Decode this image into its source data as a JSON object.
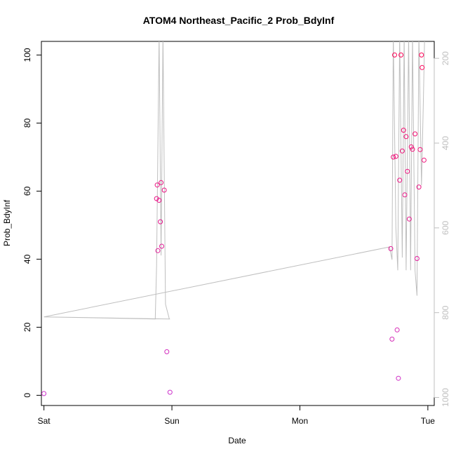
{
  "chart_data": {
    "type": "scatter",
    "title": "ATOM4 Northeast_Pacific_2 Prob_BdyInf",
    "xlabel": "Date",
    "ylabel": "Prob_BdyInf",
    "x_tick_labels": [
      "Sat",
      "Sun",
      "Mon",
      "Tue"
    ],
    "xlim_days": [
      -0.02,
      3.05
    ],
    "ylim": [
      -3,
      104
    ],
    "y_ticks": [
      0,
      20,
      40,
      60,
      80,
      100
    ],
    "y2_ticks": [
      200,
      400,
      600,
      800,
      1000
    ],
    "y2lim": [
      1019,
      160
    ],
    "grid": false,
    "legend": "none",
    "colors": {
      "point_low": "#cc33cc",
      "point_high": "#ff0055",
      "trace": "#bfbfbf",
      "y2_axis": "#bfbfbf"
    },
    "series": [
      {
        "values": [
          {
            "x": 0.0,
            "y": 0.5
          },
          {
            "x": 0.88,
            "y": 57.8
          },
          {
            "x": 0.885,
            "y": 61.8
          },
          {
            "x": 0.89,
            "y": 42.5
          },
          {
            "x": 0.9,
            "y": 57.3
          },
          {
            "x": 0.91,
            "y": 51.0
          },
          {
            "x": 0.915,
            "y": 62.5
          },
          {
            "x": 0.92,
            "y": 43.8
          },
          {
            "x": 0.94,
            "y": 60.3
          },
          {
            "x": 0.96,
            "y": 12.8
          },
          {
            "x": 0.985,
            "y": 0.9
          },
          {
            "x": 2.71,
            "y": 43.1
          },
          {
            "x": 2.72,
            "y": 16.5
          },
          {
            "x": 2.73,
            "y": 70.0
          },
          {
            "x": 2.74,
            "y": 100.0
          },
          {
            "x": 2.75,
            "y": 70.2
          },
          {
            "x": 2.76,
            "y": 19.2
          },
          {
            "x": 2.77,
            "y": 5.0
          },
          {
            "x": 2.78,
            "y": 63.2
          },
          {
            "x": 2.79,
            "y": 100.0
          },
          {
            "x": 2.8,
            "y": 71.8
          },
          {
            "x": 2.81,
            "y": 77.9
          },
          {
            "x": 2.82,
            "y": 58.9
          },
          {
            "x": 2.83,
            "y": 76.0
          },
          {
            "x": 2.84,
            "y": 65.8
          },
          {
            "x": 2.855,
            "y": 51.8
          },
          {
            "x": 2.87,
            "y": 73.0
          },
          {
            "x": 2.88,
            "y": 72.3
          },
          {
            "x": 2.9,
            "y": 76.8
          },
          {
            "x": 2.915,
            "y": 40.2
          },
          {
            "x": 2.93,
            "y": 61.2
          },
          {
            "x": 2.94,
            "y": 72.2
          },
          {
            "x": 2.95,
            "y": 100.0
          },
          {
            "x": 2.955,
            "y": 96.3
          },
          {
            "x": 2.97,
            "y": 69.1
          }
        ]
      },
      {
        "axis": "right",
        "values": [
          {
            "x": 0.0,
            "y": 810
          },
          {
            "x": 0.87,
            "y": 815
          },
          {
            "x": 0.88,
            "y": 690
          },
          {
            "x": 0.9,
            "y": 145
          },
          {
            "x": 0.915,
            "y": 665
          },
          {
            "x": 0.93,
            "y": 145
          },
          {
            "x": 0.95,
            "y": 780
          },
          {
            "x": 0.98,
            "y": 815
          },
          {
            "x": 0.985,
            "y": 815
          },
          {
            "x": 0.0,
            "y": 810
          },
          {
            "x": 2.7,
            "y": 645
          },
          {
            "x": 2.72,
            "y": 675
          },
          {
            "x": 2.73,
            "y": 145
          },
          {
            "x": 2.75,
            "y": 600
          },
          {
            "x": 2.765,
            "y": 700
          },
          {
            "x": 2.78,
            "y": 145
          },
          {
            "x": 2.8,
            "y": 670
          },
          {
            "x": 2.815,
            "y": 145
          },
          {
            "x": 2.83,
            "y": 700
          },
          {
            "x": 2.85,
            "y": 145
          },
          {
            "x": 2.865,
            "y": 700
          },
          {
            "x": 2.88,
            "y": 145
          },
          {
            "x": 2.9,
            "y": 700
          },
          {
            "x": 2.915,
            "y": 760
          },
          {
            "x": 2.93,
            "y": 145
          },
          {
            "x": 2.95,
            "y": 500
          },
          {
            "x": 2.965,
            "y": 300
          },
          {
            "x": 2.975,
            "y": 145
          }
        ]
      }
    ]
  }
}
